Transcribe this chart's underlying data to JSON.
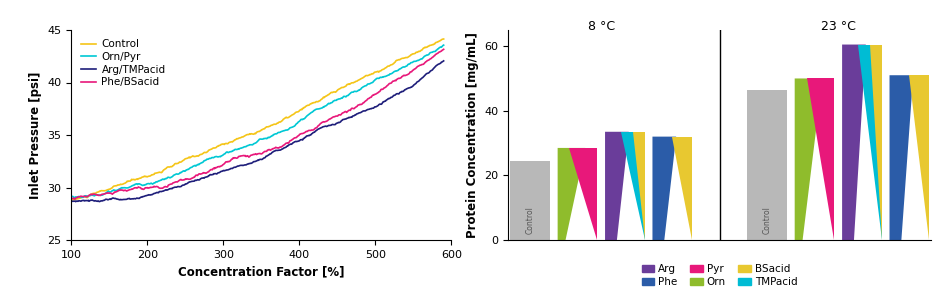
{
  "line_colors": {
    "Control": "#f5c518",
    "Orn/Pyr": "#00c8d4",
    "Arg/TMPacid": "#1e1e7a",
    "Phe/BSacid": "#e8187a"
  },
  "line_labels": [
    "Control",
    "Orn/Pyr",
    "Arg/TMPacid",
    "Phe/BSacid"
  ],
  "xlabel_line": "Concentration Factor [%]",
  "ylabel_line": "Inlet Pressure [psi]",
  "ylim_line": [
    25,
    45
  ],
  "xlim_line": [
    100,
    600
  ],
  "ylabel_bar": "Protein Concentration [mg/mL]",
  "ylim_bar": [
    0,
    65
  ],
  "temp_labels": [
    "8 °C",
    "23 °C"
  ],
  "legend_items": [
    {
      "label": "Arg",
      "color": "#6a3d9a"
    },
    {
      "label": "Phe",
      "color": "#2b5ca8"
    },
    {
      "label": "Pyr",
      "color": "#e8187a"
    },
    {
      "label": "Orn",
      "color": "#8fbc2c"
    },
    {
      "label": "BSacid",
      "color": "#e8c830"
    },
    {
      "label": "TMPacid",
      "color": "#00bcd4"
    }
  ],
  "bars_8C": [
    {
      "wedges": [
        {
          "color": "#b8b8b8",
          "val": 24.5,
          "xl": -0.5,
          "xr": 0.5,
          "bl": -0.5,
          "br": 0.5
        }
      ]
    },
    {
      "wedges": [
        {
          "color": "#8fbc2c",
          "val": 28.5,
          "xl": -0.5,
          "xr": 0.2,
          "bl": -0.5,
          "br": -0.3
        },
        {
          "color": "#e8187a",
          "val": 28.5,
          "xl": -0.2,
          "xr": 0.5,
          "bl": 0.5,
          "br": 0.5
        }
      ]
    },
    {
      "wedges": [
        {
          "color": "#6a3d9a",
          "val": 33.5,
          "xl": -0.5,
          "xr": 0.1,
          "bl": -0.5,
          "br": -0.2
        },
        {
          "color": "#00bcd4",
          "val": 33.5,
          "xl": -0.1,
          "xr": 0.5,
          "bl": 0.5,
          "br": 0.5
        },
        {
          "color": "#e8c830",
          "val": 33.5,
          "xl": 0.2,
          "xr": 0.5,
          "bl": 0.5,
          "br": 0.5
        }
      ]
    },
    {
      "wedges": [
        {
          "color": "#2b5ca8",
          "val": 32.0,
          "xl": -0.5,
          "xr": 0.1,
          "bl": -0.5,
          "br": -0.2
        },
        {
          "color": "#e8c830",
          "val": 32.0,
          "xl": 0.0,
          "xr": 0.5,
          "bl": 0.5,
          "br": 0.5
        }
      ]
    }
  ],
  "bars_23C": [
    {
      "wedges": [
        {
          "color": "#b8b8b8",
          "val": 46.5,
          "xl": -0.5,
          "xr": 0.5,
          "bl": -0.5,
          "br": 0.5
        }
      ]
    },
    {
      "wedges": [
        {
          "color": "#8fbc2c",
          "val": 50.0,
          "xl": -0.5,
          "xr": 0.2,
          "bl": -0.5,
          "br": -0.3
        },
        {
          "color": "#e8187a",
          "val": 50.0,
          "xl": -0.2,
          "xr": 0.5,
          "bl": 0.5,
          "br": 0.5
        }
      ]
    },
    {
      "wedges": [
        {
          "color": "#6a3d9a",
          "val": 60.5,
          "xl": -0.5,
          "xr": 0.1,
          "bl": -0.5,
          "br": -0.2
        },
        {
          "color": "#00bcd4",
          "val": 60.5,
          "xl": -0.1,
          "xr": 0.5,
          "bl": 0.5,
          "br": 0.5
        },
        {
          "color": "#e8c830",
          "val": 60.5,
          "xl": 0.2,
          "xr": 0.5,
          "bl": 0.5,
          "br": 0.5
        }
      ]
    },
    {
      "wedges": [
        {
          "color": "#2b5ca8",
          "val": 51.0,
          "xl": -0.5,
          "xr": 0.1,
          "bl": -0.5,
          "br": -0.2
        },
        {
          "color": "#e8c830",
          "val": 51.0,
          "xl": 0.0,
          "xr": 0.5,
          "bl": 0.5,
          "br": 0.5
        }
      ]
    }
  ]
}
